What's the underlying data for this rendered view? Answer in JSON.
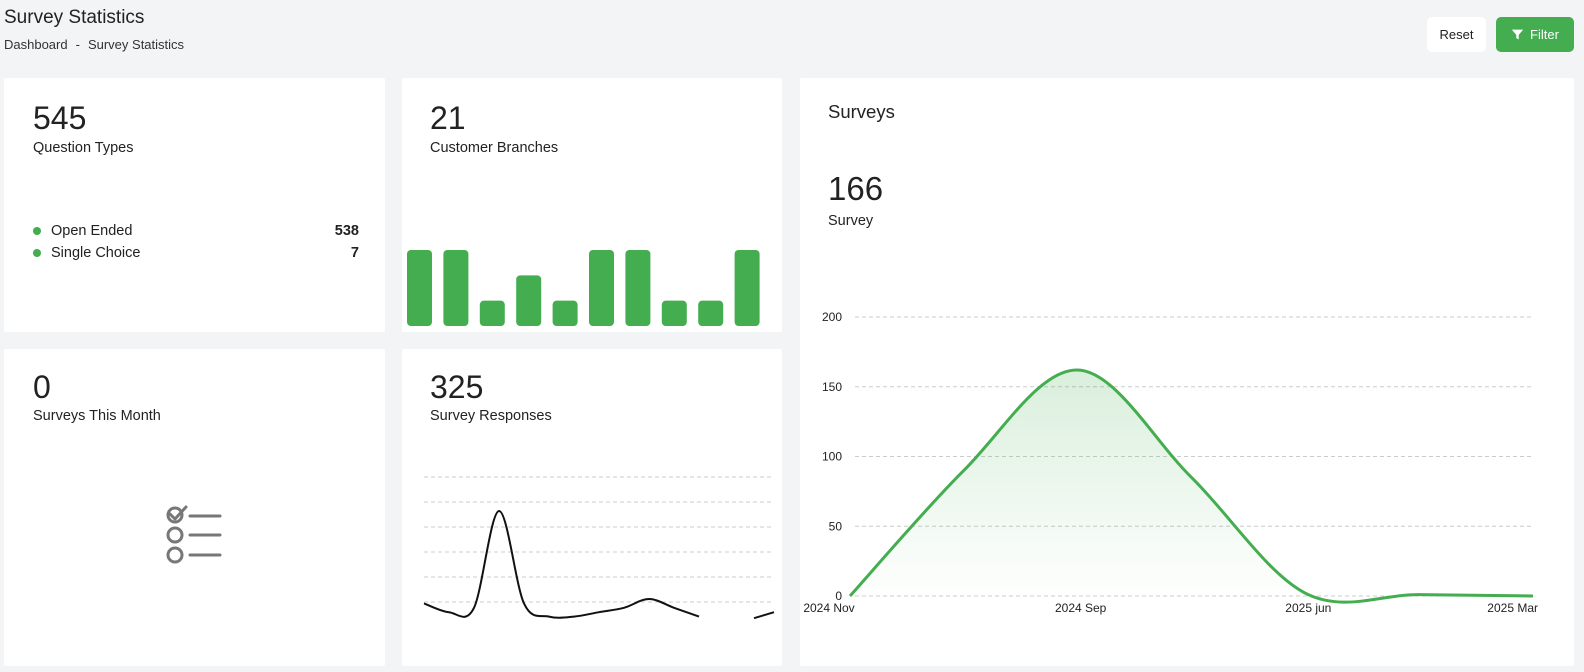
{
  "header": {
    "title": "Survey Statistics",
    "breadcrumb": [
      "Dashboard",
      "-",
      "Survey Statistics"
    ],
    "reset_label": "Reset",
    "filter_label": "Filter",
    "filter_icon": "filter-icon"
  },
  "colors": {
    "accent": "#43ad4f",
    "text": "#222222",
    "background": "#f3f4f5"
  },
  "cards": {
    "question_types": {
      "value": "545",
      "label": "Question Types",
      "legend": [
        {
          "name": "Open Ended",
          "value": "538"
        },
        {
          "name": "Single Choice",
          "value": "7"
        }
      ]
    },
    "customer_branches": {
      "value": "21",
      "label": "Customer Branches"
    },
    "surveys_this_month": {
      "value": "0",
      "label": "Surveys This Month",
      "icon": "checklist-icon"
    },
    "survey_responses": {
      "value": "325",
      "label": "Survey Responses"
    },
    "surveys": {
      "title": "Surveys",
      "value": "166",
      "label": "Survey"
    }
  },
  "chart_data": [
    {
      "type": "bar",
      "title": "",
      "values": [
        3,
        3,
        1,
        2,
        1,
        3,
        3,
        1,
        1,
        3
      ],
      "color": "#43ad4f"
    },
    {
      "type": "line",
      "title": "",
      "x": [
        0,
        1,
        2,
        3,
        4,
        5,
        6,
        7,
        8,
        9,
        10,
        11,
        12,
        13,
        14
      ],
      "values": [
        4,
        2,
        3,
        25,
        4,
        1,
        1,
        2,
        3,
        5,
        3,
        1,
        null,
        null,
        2
      ],
      "color": "#111111",
      "grid": true
    },
    {
      "type": "area",
      "title": "",
      "xlabel": "",
      "ylabel": "",
      "x": [
        "2024 Nov",
        "2024 Sep",
        "2025 jun",
        "2025 Mar"
      ],
      "values": [
        0,
        162,
        2,
        0
      ],
      "y_ticks": [
        "0",
        "50",
        "100",
        "150",
        "200"
      ],
      "ylim": [
        0,
        200
      ],
      "grid": true,
      "color": "#43ad4f"
    }
  ]
}
